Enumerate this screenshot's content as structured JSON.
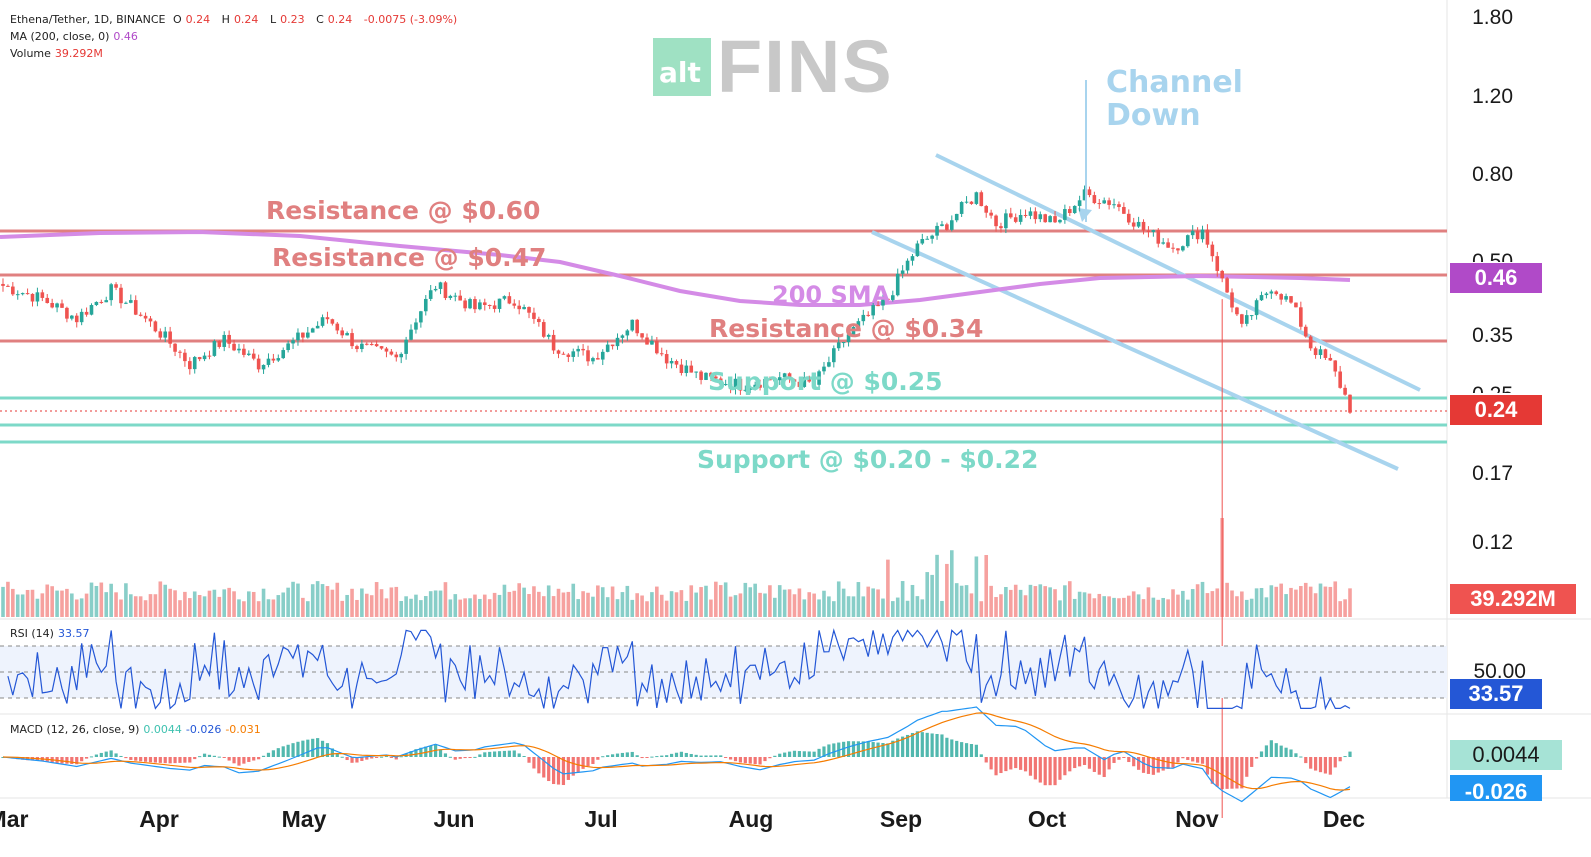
{
  "header": {
    "symbol_line": "Ethena/Tether, 1D, BINANCE",
    "ohlc": {
      "o_label": "O",
      "o": "0.24",
      "h_label": "H",
      "h": "0.24",
      "l_label": "L",
      "l": "0.23",
      "c_label": "C",
      "c": "0.24",
      "change": "-0.0075 (-3.09%)"
    },
    "ma_label": "MA (200, close, 0)",
    "ma_value": "0.46",
    "volume_label": "Volume",
    "volume_value": "39.292M"
  },
  "logo": {
    "alt": "alt",
    "brand": "FINS"
  },
  "price_axis": [
    "1.80",
    "1.20",
    "0.80",
    "0.50",
    "0.35",
    "0.25",
    "0.17",
    "0.12"
  ],
  "tags": {
    "ma": "0.46",
    "price": "0.24",
    "volume": "39.292M",
    "rsi": "33.57",
    "macd": "0.0044",
    "signal": "-0.026"
  },
  "colors": {
    "up": "#26a69a",
    "down": "#ef5350",
    "resistance": "#e08080",
    "support": "#7dd9c8",
    "channel": "#a8d4ee",
    "sma": "#d48be6",
    "rsi": "#2457d6",
    "macd": "#2196f3",
    "signal": "#f57c00",
    "ma_tag": "#b04ac8",
    "price_tag": "#e53935",
    "volume_tag": "#ef5350",
    "rsi_tag": "#2457d6",
    "macd_tag": "#a6e3d6",
    "signal_tag": "#2196f3"
  },
  "annotations": {
    "channel": "Channel\nDown",
    "res060": "Resistance @ $0.60",
    "res047": "Resistance @ $0.47",
    "sma": "200 SMA",
    "res034": "Resistance @ $0.34",
    "sup025": "Support @ $0.25",
    "sup020": "Support @ $0.20 - $0.22"
  },
  "rsi_panel": {
    "label": "RSI (14)",
    "value": "33.57",
    "level": "50.00"
  },
  "macd_panel": {
    "label": "MACD (12, 26, close, 9)",
    "hist": "0.0044",
    "macd": "-0.026",
    "signal": "-0.031"
  },
  "months": [
    "Mar",
    "Apr",
    "May",
    "Jun",
    "Jul",
    "Aug",
    "Sep",
    "Oct",
    "Nov",
    "Dec"
  ],
  "chart_data": {
    "type": "candlestick",
    "title": "Ethena/Tether, 1D, BINANCE",
    "series": [
      {
        "name": "Price (close)",
        "x": [
          "Mar",
          "Apr",
          "May",
          "Jun",
          "Jul",
          "Aug",
          "Sep",
          "Oct",
          "Nov",
          "Dec"
        ],
        "values": [
          0.45,
          0.32,
          0.4,
          0.3,
          0.28,
          0.7,
          0.75,
          0.55,
          0.34,
          0.24
        ]
      },
      {
        "name": "MA (200, close, 0)",
        "x": [
          "Mar",
          "Apr",
          "May",
          "Jun",
          "Jul",
          "Aug",
          "Sep",
          "Oct",
          "Nov",
          "Dec"
        ],
        "values": [
          0.6,
          0.62,
          0.62,
          0.6,
          0.55,
          0.42,
          0.4,
          0.44,
          0.47,
          0.46
        ]
      },
      {
        "name": "RSI (14)",
        "x": [
          "Mar",
          "Apr",
          "May",
          "Jun",
          "Jul",
          "Aug",
          "Sep",
          "Oct",
          "Nov",
          "Dec"
        ],
        "values": [
          50,
          45,
          55,
          46,
          48,
          68,
          58,
          45,
          38,
          33.57
        ]
      },
      {
        "name": "MACD",
        "x": [
          "Mar",
          "Apr",
          "May",
          "Jun",
          "Jul",
          "Aug",
          "Sep",
          "Oct",
          "Nov",
          "Dec"
        ],
        "values": [
          -0.01,
          -0.015,
          0.0,
          -0.01,
          -0.005,
          0.06,
          0.02,
          -0.03,
          -0.04,
          -0.026
        ]
      }
    ],
    "horizontal_levels": {
      "resistance": [
        0.6,
        0.47,
        0.34
      ],
      "support": [
        0.25,
        0.22,
        0.2
      ]
    },
    "price_axis_ticks": [
      1.8,
      1.2,
      0.8,
      0.5,
      0.35,
      0.25,
      0.17,
      0.12
    ],
    "scale": "log",
    "current": {
      "price": 0.24,
      "ma200": 0.46,
      "volume": "39.292M",
      "rsi": 33.57,
      "macd_hist": 0.0044,
      "macd": -0.026,
      "signal": -0.031
    }
  }
}
